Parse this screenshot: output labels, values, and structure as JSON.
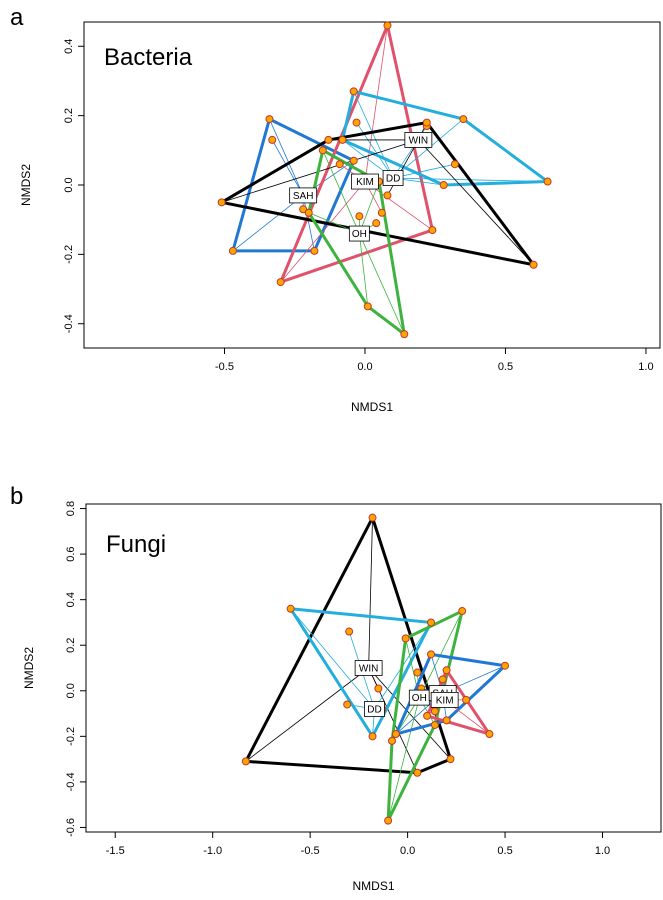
{
  "panels": [
    {
      "letter": "a"
    },
    {
      "letter": "b"
    }
  ],
  "colors": {
    "SAH": "#1f78d4",
    "KIM": "#e0516b",
    "DD": "#23aede",
    "WIN": "#000000",
    "OH": "#3db33d",
    "point_fill": "#ffa500",
    "point_stroke": "#c0392b"
  },
  "chart_data": [
    {
      "type": "scatter",
      "title": "Bacteria",
      "xlabel": "NMDS1",
      "ylabel": "NMDS2",
      "xlim": [
        -1.0,
        1.05
      ],
      "ylim": [
        -0.47,
        0.47
      ],
      "xticks": [
        -0.5,
        0.0,
        0.5,
        1.0
      ],
      "xtick_labels": [
        "-0.5",
        "0.0",
        "0.5",
        "1.0"
      ],
      "yticks": [
        -0.4,
        -0.2,
        0.0,
        0.2,
        0.4
      ],
      "ytick_labels": [
        "-0.4",
        "-0.2",
        "0.0",
        "0.2",
        "0.4"
      ],
      "grid": false,
      "legend": "none",
      "groups": [
        {
          "name": "SAH",
          "centroid": [
            -0.22,
            -0.03
          ],
          "hull": [
            [
              -0.34,
              0.19
            ],
            [
              -0.04,
              0.07
            ],
            [
              -0.18,
              -0.19
            ],
            [
              -0.47,
              -0.19
            ]
          ],
          "points": [
            [
              -0.34,
              0.19
            ],
            [
              -0.33,
              0.13
            ],
            [
              -0.04,
              0.07
            ],
            [
              -0.18,
              -0.19
            ],
            [
              -0.47,
              -0.19
            ],
            [
              -0.22,
              -0.07
            ]
          ]
        },
        {
          "name": "KIM",
          "centroid": [
            0.0,
            0.01
          ],
          "hull": [
            [
              0.08,
              0.46
            ],
            [
              0.24,
              -0.13
            ],
            [
              -0.3,
              -0.28
            ]
          ],
          "points": [
            [
              0.08,
              0.46
            ],
            [
              0.24,
              -0.13
            ],
            [
              -0.3,
              -0.28
            ],
            [
              -0.09,
              0.06
            ],
            [
              0.06,
              -0.08
            ],
            [
              0.05,
              0.01
            ]
          ]
        },
        {
          "name": "DD",
          "centroid": [
            0.1,
            0.02
          ],
          "hull": [
            [
              -0.04,
              0.27
            ],
            [
              0.35,
              0.19
            ],
            [
              0.65,
              0.01
            ],
            [
              0.28,
              0.0
            ],
            [
              -0.08,
              0.13
            ]
          ],
          "points": [
            [
              -0.04,
              0.27
            ],
            [
              0.35,
              0.19
            ],
            [
              0.65,
              0.01
            ],
            [
              0.28,
              0.0
            ],
            [
              -0.08,
              0.13
            ],
            [
              -0.03,
              0.18
            ],
            [
              0.32,
              0.06
            ],
            [
              0.22,
              0.17
            ]
          ]
        },
        {
          "name": "WIN",
          "centroid": [
            0.19,
            0.13
          ],
          "hull": [
            [
              -0.51,
              -0.05
            ],
            [
              -0.13,
              0.13
            ],
            [
              0.22,
              0.18
            ],
            [
              0.6,
              -0.23
            ]
          ],
          "points": [
            [
              -0.51,
              -0.05
            ],
            [
              -0.13,
              0.13
            ],
            [
              0.22,
              0.18
            ],
            [
              0.6,
              -0.23
            ],
            [
              0.08,
              -0.03
            ]
          ]
        },
        {
          "name": "OH",
          "centroid": [
            -0.02,
            -0.14
          ],
          "hull": [
            [
              -0.15,
              0.1
            ],
            [
              0.05,
              0.01
            ],
            [
              0.14,
              -0.43
            ],
            [
              0.01,
              -0.35
            ],
            [
              -0.2,
              -0.08
            ]
          ],
          "points": [
            [
              -0.15,
              0.1
            ],
            [
              0.05,
              0.01
            ],
            [
              0.14,
              -0.43
            ],
            [
              0.01,
              -0.35
            ],
            [
              -0.2,
              -0.08
            ],
            [
              -0.02,
              -0.09
            ],
            [
              0.04,
              -0.11
            ]
          ]
        }
      ]
    },
    {
      "type": "scatter",
      "title": "Fungi",
      "xlabel": "NMDS1",
      "ylabel": "NMDS2",
      "xlim": [
        -1.65,
        1.3
      ],
      "ylim": [
        -0.62,
        0.82
      ],
      "xticks": [
        -1.5,
        -1.0,
        -0.5,
        0.0,
        0.5,
        1.0
      ],
      "xtick_labels": [
        "-1.5",
        "-1.0",
        "-0.5",
        "0.0",
        "0.5",
        "1.0"
      ],
      "yticks": [
        -0.6,
        -0.4,
        -0.2,
        0.0,
        0.2,
        0.4,
        0.6,
        0.8
      ],
      "ytick_labels": [
        "-0.6",
        "-0.4",
        "-0.2",
        "0.0",
        "0.2",
        "0.4",
        "0.6",
        "0.8"
      ],
      "grid": false,
      "legend": "none",
      "groups": [
        {
          "name": "WIN",
          "centroid": [
            -0.2,
            0.1
          ],
          "hull": [
            [
              -0.18,
              0.76
            ],
            [
              0.22,
              -0.3
            ],
            [
              0.05,
              -0.36
            ],
            [
              -0.83,
              -0.31
            ]
          ],
          "points": [
            [
              -0.18,
              0.76
            ],
            [
              0.22,
              -0.3
            ],
            [
              0.05,
              -0.36
            ],
            [
              -0.83,
              -0.31
            ],
            [
              -0.15,
              0.01
            ]
          ]
        },
        {
          "name": "DD",
          "centroid": [
            -0.17,
            -0.08
          ],
          "hull": [
            [
              -0.6,
              0.36
            ],
            [
              0.12,
              0.3
            ],
            [
              -0.18,
              -0.2
            ]
          ],
          "points": [
            [
              -0.6,
              0.36
            ],
            [
              0.12,
              0.3
            ],
            [
              -0.18,
              -0.2
            ],
            [
              -0.3,
              0.26
            ],
            [
              -0.31,
              -0.06
            ],
            [
              -0.13,
              -0.08
            ]
          ]
        },
        {
          "name": "OH",
          "centroid": [
            0.06,
            -0.03
          ],
          "hull": [
            [
              0.28,
              0.35
            ],
            [
              0.14,
              -0.15
            ],
            [
              -0.1,
              -0.57
            ],
            [
              -0.08,
              -0.22
            ],
            [
              -0.01,
              0.23
            ]
          ],
          "points": [
            [
              0.28,
              0.35
            ],
            [
              0.14,
              -0.15
            ],
            [
              -0.1,
              -0.57
            ],
            [
              -0.08,
              -0.22
            ],
            [
              -0.01,
              0.23
            ],
            [
              0.05,
              0.08
            ]
          ]
        },
        {
          "name": "SAH",
          "centroid": [
            0.18,
            -0.01
          ],
          "hull": [
            [
              0.12,
              0.16
            ],
            [
              0.5,
              0.11
            ],
            [
              0.2,
              -0.13
            ],
            [
              -0.06,
              -0.19
            ]
          ],
          "points": [
            [
              0.12,
              0.16
            ],
            [
              0.5,
              0.11
            ],
            [
              0.2,
              -0.13
            ],
            [
              -0.06,
              -0.19
            ],
            [
              0.18,
              0.05
            ],
            [
              0.07,
              0.01
            ]
          ]
        },
        {
          "name": "KIM",
          "centroid": [
            0.19,
            -0.04
          ],
          "hull": [
            [
              0.2,
              0.09
            ],
            [
              0.42,
              -0.19
            ],
            [
              0.1,
              -0.11
            ]
          ],
          "points": [
            [
              0.2,
              0.09
            ],
            [
              0.42,
              -0.19
            ],
            [
              0.1,
              -0.11
            ],
            [
              0.3,
              -0.04
            ],
            [
              0.04,
              -0.02
            ],
            [
              0.14,
              -0.09
            ]
          ]
        }
      ]
    }
  ]
}
